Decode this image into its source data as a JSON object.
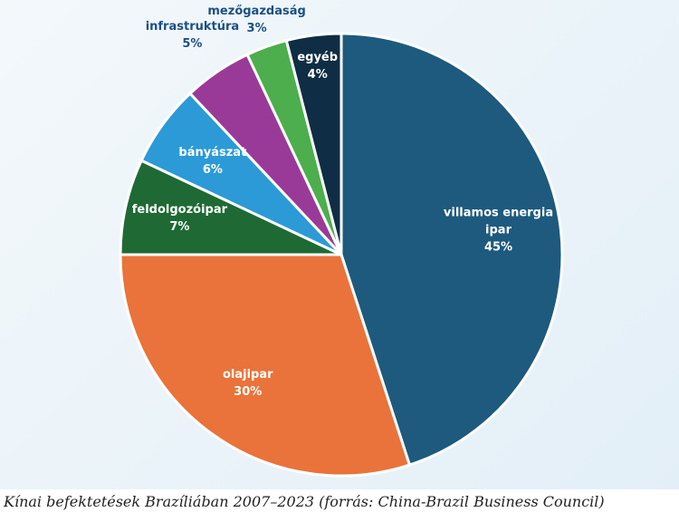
{
  "chart_data": {
    "type": "pie",
    "categories": [
      "villamos energia ipar",
      "olajipar",
      "feldolgozóipar",
      "bányászat",
      "infrastruktúra",
      "mezőgazdaság",
      "egyéb"
    ],
    "values": [
      45,
      30,
      7,
      6,
      5,
      3,
      4
    ],
    "value_labels": [
      "45%",
      "30%",
      "7%",
      "6%",
      "5%",
      "3%",
      "4%"
    ],
    "colors": [
      "#1d5a7e",
      "#e9733a",
      "#1f6a34",
      "#2c9ad6",
      "#9a3a98",
      "#4cae4c",
      "#0f2d44"
    ],
    "caption": "Kínai befektetések Brazíliában 2007–2023 (forrás: China-Brazil Business Council)"
  }
}
